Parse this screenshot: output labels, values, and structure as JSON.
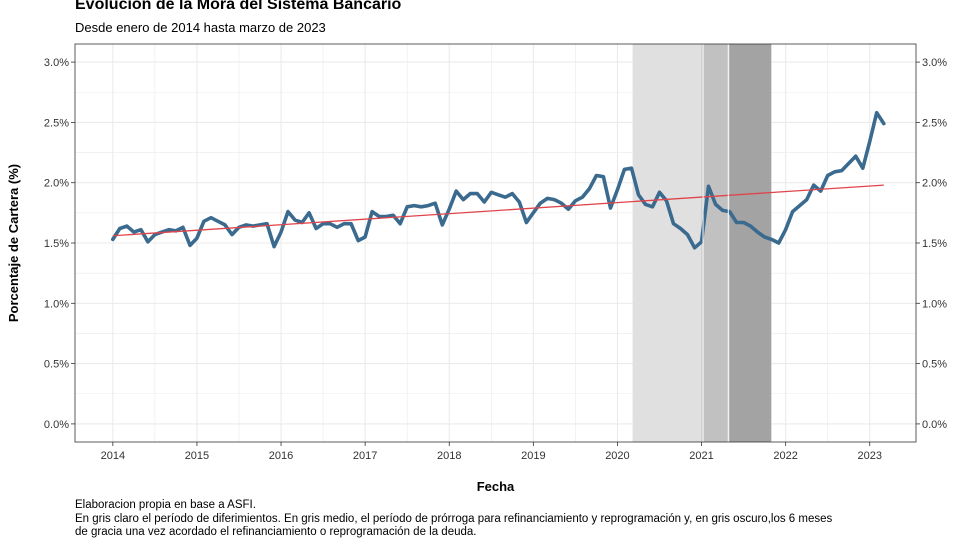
{
  "title": "Evolución de la Mora del Sistema Bancario",
  "subtitle": "Desde enero de 2014 hasta marzo de 2023",
  "captions": [
    "Elaboracion propia en base a ASFI.",
    "En gris claro el período de diferimientos. En gris medio, el período de prórroga para refinanciamiento y reprogramación y, en gris oscuro,los 6 meses",
    "de gracia una vez acordado el refinanciamiento o reprogramación de la deuda."
  ],
  "colors": {
    "series": "#3b6a8f",
    "trend": "#e0444b",
    "band_light": "#e0e0e0",
    "band_medium": "#c1c1c1",
    "band_dark": "#a3a3a3",
    "grid": "#ebebeb"
  },
  "chart_data": {
    "type": "line",
    "xlabel": "Fecha",
    "ylabel": "Porcentaje de Cartera (%)",
    "xlim": [
      2013.55,
      2023.55
    ],
    "ylim": [
      -0.15,
      3.15
    ],
    "x_ticks": [
      2014,
      2015,
      2016,
      2017,
      2018,
      2019,
      2020,
      2021,
      2022,
      2023
    ],
    "x_tick_labels": [
      "2014",
      "2015",
      "2016",
      "2017",
      "2018",
      "2019",
      "2020",
      "2021",
      "2022",
      "2023"
    ],
    "y_ticks": [
      0.0,
      0.5,
      1.0,
      1.5,
      2.0,
      2.5,
      3.0
    ],
    "y_tick_labels": [
      "0.0%",
      "0.5%",
      "1.0%",
      "1.5%",
      "2.0%",
      "2.5%",
      "3.0%"
    ],
    "secondary_y_axis": true,
    "grid": true,
    "shaded_periods": [
      {
        "start": 2020.18,
        "end": 2021.0,
        "shade": "light"
      },
      {
        "start": 2021.0,
        "end": 2021.33,
        "shade": "medium"
      },
      {
        "start": 2021.33,
        "end": 2021.83,
        "shade": "dark"
      }
    ],
    "series": [
      {
        "type": "line",
        "x": [
          2014.0,
          2014.083,
          2014.167,
          2014.25,
          2014.333,
          2014.417,
          2014.5,
          2014.583,
          2014.667,
          2014.75,
          2014.833,
          2014.917,
          2015.0,
          2015.083,
          2015.167,
          2015.25,
          2015.333,
          2015.417,
          2015.5,
          2015.583,
          2015.667,
          2015.75,
          2015.833,
          2015.917,
          2016.0,
          2016.083,
          2016.167,
          2016.25,
          2016.333,
          2016.417,
          2016.5,
          2016.583,
          2016.667,
          2016.75,
          2016.833,
          2016.917,
          2017.0,
          2017.083,
          2017.167,
          2017.25,
          2017.333,
          2017.417,
          2017.5,
          2017.583,
          2017.667,
          2017.75,
          2017.833,
          2017.917,
          2018.0,
          2018.083,
          2018.167,
          2018.25,
          2018.333,
          2018.417,
          2018.5,
          2018.583,
          2018.667,
          2018.75,
          2018.833,
          2018.917,
          2019.0,
          2019.083,
          2019.167,
          2019.25,
          2019.333,
          2019.417,
          2019.5,
          2019.583,
          2019.667,
          2019.75,
          2019.833,
          2019.917,
          2020.0,
          2020.083,
          2020.167,
          2020.25,
          2020.333,
          2020.417,
          2020.5,
          2020.583,
          2020.667,
          2020.75,
          2020.833,
          2020.917,
          2021.0,
          2021.083,
          2021.167,
          2021.25,
          2021.333,
          2021.417,
          2021.5,
          2021.583,
          2021.667,
          2021.75,
          2021.833,
          2021.917,
          2022.0,
          2022.083,
          2022.167,
          2022.25,
          2022.333,
          2022.417,
          2022.5,
          2022.583,
          2022.667,
          2022.75,
          2022.833,
          2022.917,
          2023.0,
          2023.083,
          2023.167
        ],
        "y": [
          1.53,
          1.62,
          1.64,
          1.59,
          1.61,
          1.51,
          1.57,
          1.59,
          1.61,
          1.6,
          1.63,
          1.48,
          1.54,
          1.68,
          1.71,
          1.68,
          1.65,
          1.57,
          1.63,
          1.65,
          1.64,
          1.65,
          1.66,
          1.47,
          1.59,
          1.76,
          1.69,
          1.67,
          1.75,
          1.62,
          1.66,
          1.66,
          1.63,
          1.66,
          1.66,
          1.52,
          1.55,
          1.76,
          1.72,
          1.72,
          1.73,
          1.66,
          1.8,
          1.81,
          1.8,
          1.81,
          1.83,
          1.65,
          1.78,
          1.93,
          1.86,
          1.91,
          1.91,
          1.84,
          1.92,
          1.9,
          1.88,
          1.91,
          1.84,
          1.67,
          1.75,
          1.83,
          1.87,
          1.86,
          1.83,
          1.78,
          1.85,
          1.88,
          1.95,
          2.06,
          2.05,
          1.79,
          1.94,
          2.11,
          2.12,
          1.9,
          1.82,
          1.8,
          1.92,
          1.85,
          1.66,
          1.62,
          1.57,
          1.46,
          1.51,
          1.97,
          1.82,
          1.77,
          1.76,
          1.67,
          1.67,
          1.64,
          1.59,
          1.55,
          1.53,
          1.5,
          1.61,
          1.76,
          1.81,
          1.86,
          1.98,
          1.93,
          2.06,
          2.09,
          2.1,
          2.16,
          2.22,
          2.12,
          2.34,
          2.58,
          2.49
        ]
      },
      {
        "type": "trend",
        "x": [
          2014.0,
          2023.167
        ],
        "y": [
          1.56,
          1.98
        ]
      }
    ]
  }
}
